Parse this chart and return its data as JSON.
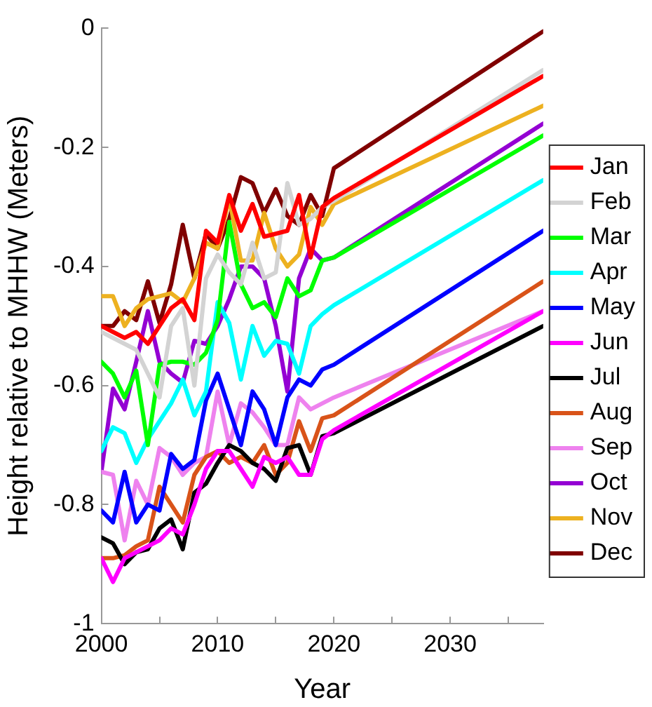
{
  "chart_data": {
    "type": "line",
    "xlabel": "Year",
    "ylabel": "Height relative to MHHW (Meters)",
    "x": [
      2000,
      2001,
      2002,
      2003,
      2004,
      2005,
      2006,
      2007,
      2008,
      2009,
      2010,
      2011,
      2012,
      2013,
      2014,
      2015,
      2016,
      2017,
      2018,
      2019,
      2020,
      2038
    ],
    "xlim": [
      2000,
      2038
    ],
    "xticks": [
      2000,
      {
        "value": 2005,
        "label": null
      },
      2010,
      {
        "value": 2015,
        "label": null
      },
      2020,
      {
        "value": 2025,
        "label": null
      },
      2030,
      {
        "value": 2035,
        "label": null
      }
    ],
    "ylim": [
      -1,
      0
    ],
    "yticks": [
      -1,
      -0.8,
      -0.6,
      -0.4,
      -0.2,
      0
    ],
    "grid": false,
    "legend": "right",
    "marker": "none",
    "line_style": "solid",
    "series": [
      {
        "name": "Jan",
        "color": "#ff0000",
        "values": [
          -0.5,
          -0.51,
          -0.52,
          -0.51,
          -0.53,
          -0.5,
          -0.47,
          -0.455,
          -0.49,
          -0.34,
          -0.36,
          -0.28,
          -0.34,
          -0.295,
          -0.35,
          -0.345,
          -0.34,
          -0.28,
          -0.385,
          -0.3,
          -0.285,
          -0.08
        ]
      },
      {
        "name": "Feb",
        "color": "#d3d3d3",
        "values": [
          -0.51,
          -0.52,
          -0.53,
          -0.54,
          -0.58,
          -0.62,
          -0.5,
          -0.47,
          -0.6,
          -0.42,
          -0.38,
          -0.41,
          -0.43,
          -0.36,
          -0.42,
          -0.41,
          -0.26,
          -0.33,
          -0.32,
          -0.3,
          -0.29,
          -0.07
        ]
      },
      {
        "name": "Mar",
        "color": "#00ff00",
        "values": [
          -0.56,
          -0.58,
          -0.62,
          -0.575,
          -0.7,
          -0.565,
          -0.56,
          -0.56,
          -0.565,
          -0.545,
          -0.49,
          -0.325,
          -0.43,
          -0.47,
          -0.46,
          -0.485,
          -0.42,
          -0.45,
          -0.44,
          -0.39,
          -0.385,
          -0.18
        ]
      },
      {
        "name": "Apr",
        "color": "#00ffff",
        "values": [
          -0.71,
          -0.67,
          -0.68,
          -0.73,
          -0.69,
          -0.66,
          -0.63,
          -0.59,
          -0.65,
          -0.61,
          -0.46,
          -0.495,
          -0.59,
          -0.5,
          -0.55,
          -0.525,
          -0.53,
          -0.58,
          -0.5,
          -0.48,
          -0.465,
          -0.255
        ]
      },
      {
        "name": "May",
        "color": "#0000ff",
        "values": [
          -0.81,
          -0.83,
          -0.745,
          -0.83,
          -0.8,
          -0.81,
          -0.715,
          -0.74,
          -0.725,
          -0.625,
          -0.58,
          -0.64,
          -0.7,
          -0.61,
          -0.64,
          -0.7,
          -0.62,
          -0.59,
          -0.6,
          -0.573,
          -0.565,
          -0.34
        ]
      },
      {
        "name": "Jun",
        "color": "#ff00ff",
        "values": [
          -0.89,
          -0.93,
          -0.89,
          -0.88,
          -0.87,
          -0.86,
          -0.84,
          -0.85,
          -0.8,
          -0.74,
          -0.71,
          -0.71,
          -0.74,
          -0.77,
          -0.72,
          -0.73,
          -0.72,
          -0.75,
          -0.75,
          -0.69,
          -0.675,
          -0.475
        ]
      },
      {
        "name": "Jul",
        "color": "#000000",
        "values": [
          -0.855,
          -0.865,
          -0.9,
          -0.88,
          -0.875,
          -0.84,
          -0.825,
          -0.875,
          -0.78,
          -0.765,
          -0.73,
          -0.7,
          -0.71,
          -0.73,
          -0.74,
          -0.76,
          -0.705,
          -0.7,
          -0.75,
          -0.685,
          -0.68,
          -0.5
        ]
      },
      {
        "name": "Aug",
        "color": "#d95319",
        "values": [
          -0.89,
          -0.89,
          -0.885,
          -0.87,
          -0.86,
          -0.77,
          -0.8,
          -0.83,
          -0.75,
          -0.72,
          -0.71,
          -0.73,
          -0.72,
          -0.73,
          -0.7,
          -0.75,
          -0.73,
          -0.66,
          -0.71,
          -0.655,
          -0.65,
          -0.425
        ]
      },
      {
        "name": "Sep",
        "color": "#ee82ee",
        "values": [
          -0.745,
          -0.75,
          -0.86,
          -0.76,
          -0.8,
          -0.705,
          -0.72,
          -0.75,
          -0.73,
          -0.72,
          -0.61,
          -0.7,
          -0.63,
          -0.645,
          -0.67,
          -0.7,
          -0.7,
          -0.62,
          -0.64,
          -0.63,
          -0.62,
          -0.475
        ]
      },
      {
        "name": "Oct",
        "color": "#9400d3",
        "values": [
          -0.745,
          -0.605,
          -0.64,
          -0.56,
          -0.475,
          -0.56,
          -0.58,
          -0.595,
          -0.525,
          -0.53,
          -0.5,
          -0.455,
          -0.4,
          -0.4,
          -0.42,
          -0.5,
          -0.61,
          -0.42,
          -0.37,
          -0.39,
          -0.385,
          -0.16
        ]
      },
      {
        "name": "Nov",
        "color": "#edb120",
        "values": [
          -0.45,
          -0.45,
          -0.5,
          -0.47,
          -0.455,
          -0.45,
          -0.445,
          -0.46,
          -0.42,
          -0.36,
          -0.37,
          -0.285,
          -0.39,
          -0.39,
          -0.31,
          -0.37,
          -0.4,
          -0.38,
          -0.3,
          -0.33,
          -0.295,
          -0.13
        ]
      },
      {
        "name": "Dec",
        "color": "#800000",
        "values": [
          -0.5,
          -0.5,
          -0.475,
          -0.49,
          -0.425,
          -0.495,
          -0.43,
          -0.33,
          -0.42,
          -0.345,
          -0.37,
          -0.32,
          -0.25,
          -0.26,
          -0.31,
          -0.27,
          -0.315,
          -0.33,
          -0.28,
          -0.315,
          -0.235,
          -0.005
        ]
      }
    ]
  }
}
